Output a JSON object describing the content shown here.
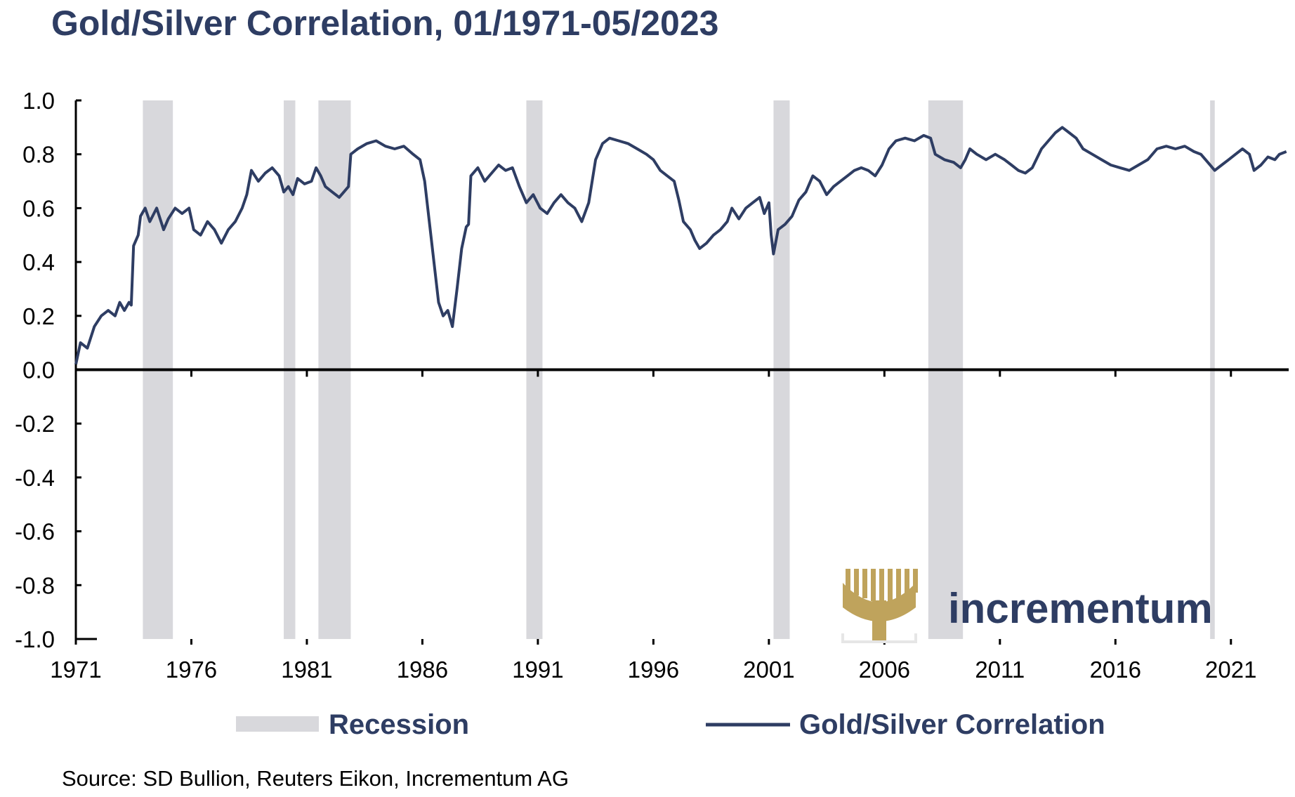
{
  "chart_data": {
    "type": "line",
    "title": "Gold/Silver Correlation, 01/1971-05/2023",
    "xlabel": "",
    "ylabel": "",
    "xlim": [
      1971.0,
      2023.5
    ],
    "ylim": [
      -1.0,
      1.0
    ],
    "y_ticks": [
      "1.0",
      "0.8",
      "0.6",
      "0.4",
      "0.2",
      "0.0",
      "-0.2",
      "-0.4",
      "-0.6",
      "-0.8",
      "-1.0"
    ],
    "x_ticks": [
      "1971",
      "1976",
      "1981",
      "1986",
      "1991",
      "1996",
      "2001",
      "2006",
      "2011",
      "2016",
      "2021"
    ],
    "grid": false,
    "legend_position": "bottom",
    "recession_periods": [
      [
        1973.9,
        1975.2
      ],
      [
        1980.0,
        1980.5
      ],
      [
        1981.5,
        1982.9
      ],
      [
        1990.5,
        1991.2
      ],
      [
        2001.2,
        2001.9
      ],
      [
        2007.9,
        2009.4
      ],
      [
        2020.1,
        2020.3
      ]
    ],
    "series": [
      {
        "name": "Gold/Silver Correlation",
        "color": "#2e3d63",
        "points": [
          [
            1971.0,
            0.02
          ],
          [
            1971.2,
            0.1
          ],
          [
            1971.5,
            0.08
          ],
          [
            1971.8,
            0.16
          ],
          [
            1972.1,
            0.2
          ],
          [
            1972.4,
            0.22
          ],
          [
            1972.7,
            0.2
          ],
          [
            1972.9,
            0.25
          ],
          [
            1973.1,
            0.22
          ],
          [
            1973.3,
            0.25
          ],
          [
            1973.4,
            0.24
          ],
          [
            1973.5,
            0.46
          ],
          [
            1973.7,
            0.5
          ],
          [
            1973.8,
            0.57
          ],
          [
            1974.0,
            0.6
          ],
          [
            1974.2,
            0.55
          ],
          [
            1974.5,
            0.6
          ],
          [
            1974.8,
            0.52
          ],
          [
            1975.0,
            0.56
          ],
          [
            1975.3,
            0.6
          ],
          [
            1975.6,
            0.58
          ],
          [
            1975.9,
            0.6
          ],
          [
            1976.1,
            0.52
          ],
          [
            1976.4,
            0.5
          ],
          [
            1976.7,
            0.55
          ],
          [
            1977.0,
            0.52
          ],
          [
            1977.3,
            0.47
          ],
          [
            1977.6,
            0.52
          ],
          [
            1977.9,
            0.55
          ],
          [
            1978.2,
            0.6
          ],
          [
            1978.4,
            0.65
          ],
          [
            1978.6,
            0.74
          ],
          [
            1978.9,
            0.7
          ],
          [
            1979.2,
            0.73
          ],
          [
            1979.5,
            0.75
          ],
          [
            1979.8,
            0.72
          ],
          [
            1980.0,
            0.66
          ],
          [
            1980.2,
            0.68
          ],
          [
            1980.4,
            0.65
          ],
          [
            1980.6,
            0.71
          ],
          [
            1980.9,
            0.69
          ],
          [
            1981.2,
            0.7
          ],
          [
            1981.4,
            0.75
          ],
          [
            1981.6,
            0.72
          ],
          [
            1981.8,
            0.68
          ],
          [
            1982.1,
            0.66
          ],
          [
            1982.4,
            0.64
          ],
          [
            1982.6,
            0.66
          ],
          [
            1982.8,
            0.68
          ],
          [
            1982.9,
            0.8
          ],
          [
            1983.2,
            0.82
          ],
          [
            1983.6,
            0.84
          ],
          [
            1984.0,
            0.85
          ],
          [
            1984.4,
            0.83
          ],
          [
            1984.8,
            0.82
          ],
          [
            1985.2,
            0.83
          ],
          [
            1985.6,
            0.8
          ],
          [
            1985.9,
            0.78
          ],
          [
            1986.1,
            0.7
          ],
          [
            1986.3,
            0.55
          ],
          [
            1986.5,
            0.4
          ],
          [
            1986.7,
            0.25
          ],
          [
            1986.9,
            0.2
          ],
          [
            1987.1,
            0.22
          ],
          [
            1987.3,
            0.16
          ],
          [
            1987.5,
            0.3
          ],
          [
            1987.7,
            0.45
          ],
          [
            1987.9,
            0.53
          ],
          [
            1988.0,
            0.54
          ],
          [
            1988.1,
            0.72
          ],
          [
            1988.4,
            0.75
          ],
          [
            1988.7,
            0.7
          ],
          [
            1989.0,
            0.73
          ],
          [
            1989.3,
            0.76
          ],
          [
            1989.6,
            0.74
          ],
          [
            1989.9,
            0.75
          ],
          [
            1990.2,
            0.68
          ],
          [
            1990.5,
            0.62
          ],
          [
            1990.8,
            0.65
          ],
          [
            1991.1,
            0.6
          ],
          [
            1991.4,
            0.58
          ],
          [
            1991.7,
            0.62
          ],
          [
            1992.0,
            0.65
          ],
          [
            1992.3,
            0.62
          ],
          [
            1992.6,
            0.6
          ],
          [
            1992.9,
            0.55
          ],
          [
            1993.2,
            0.62
          ],
          [
            1993.5,
            0.78
          ],
          [
            1993.8,
            0.84
          ],
          [
            1994.1,
            0.86
          ],
          [
            1994.5,
            0.85
          ],
          [
            1994.9,
            0.84
          ],
          [
            1995.3,
            0.82
          ],
          [
            1995.7,
            0.8
          ],
          [
            1996.0,
            0.78
          ],
          [
            1996.3,
            0.74
          ],
          [
            1996.6,
            0.72
          ],
          [
            1996.9,
            0.7
          ],
          [
            1997.1,
            0.63
          ],
          [
            1997.3,
            0.55
          ],
          [
            1997.6,
            0.52
          ],
          [
            1997.8,
            0.48
          ],
          [
            1998.0,
            0.45
          ],
          [
            1998.3,
            0.47
          ],
          [
            1998.6,
            0.5
          ],
          [
            1998.9,
            0.52
          ],
          [
            1999.2,
            0.55
          ],
          [
            1999.4,
            0.6
          ],
          [
            1999.7,
            0.56
          ],
          [
            2000.0,
            0.6
          ],
          [
            2000.3,
            0.62
          ],
          [
            2000.6,
            0.64
          ],
          [
            2000.8,
            0.58
          ],
          [
            2001.0,
            0.62
          ],
          [
            2001.1,
            0.5
          ],
          [
            2001.2,
            0.43
          ],
          [
            2001.4,
            0.52
          ],
          [
            2001.7,
            0.54
          ],
          [
            2002.0,
            0.57
          ],
          [
            2002.3,
            0.63
          ],
          [
            2002.6,
            0.66
          ],
          [
            2002.9,
            0.72
          ],
          [
            2003.2,
            0.7
          ],
          [
            2003.5,
            0.65
          ],
          [
            2003.8,
            0.68
          ],
          [
            2004.1,
            0.7
          ],
          [
            2004.4,
            0.72
          ],
          [
            2004.7,
            0.74
          ],
          [
            2005.0,
            0.75
          ],
          [
            2005.3,
            0.74
          ],
          [
            2005.6,
            0.72
          ],
          [
            2005.9,
            0.76
          ],
          [
            2006.2,
            0.82
          ],
          [
            2006.5,
            0.85
          ],
          [
            2006.9,
            0.86
          ],
          [
            2007.3,
            0.85
          ],
          [
            2007.7,
            0.87
          ],
          [
            2008.0,
            0.86
          ],
          [
            2008.2,
            0.8
          ],
          [
            2008.6,
            0.78
          ],
          [
            2009.0,
            0.77
          ],
          [
            2009.3,
            0.75
          ],
          [
            2009.5,
            0.78
          ],
          [
            2009.7,
            0.82
          ],
          [
            2010.0,
            0.8
          ],
          [
            2010.4,
            0.78
          ],
          [
            2010.8,
            0.8
          ],
          [
            2011.2,
            0.78
          ],
          [
            2011.5,
            0.76
          ],
          [
            2011.8,
            0.74
          ],
          [
            2012.1,
            0.73
          ],
          [
            2012.4,
            0.75
          ],
          [
            2012.8,
            0.82
          ],
          [
            2013.1,
            0.85
          ],
          [
            2013.4,
            0.88
          ],
          [
            2013.7,
            0.9
          ],
          [
            2014.0,
            0.88
          ],
          [
            2014.3,
            0.86
          ],
          [
            2014.6,
            0.82
          ],
          [
            2015.0,
            0.8
          ],
          [
            2015.4,
            0.78
          ],
          [
            2015.8,
            0.76
          ],
          [
            2016.2,
            0.75
          ],
          [
            2016.6,
            0.74
          ],
          [
            2017.0,
            0.76
          ],
          [
            2017.4,
            0.78
          ],
          [
            2017.8,
            0.82
          ],
          [
            2018.2,
            0.83
          ],
          [
            2018.6,
            0.82
          ],
          [
            2019.0,
            0.83
          ],
          [
            2019.4,
            0.81
          ],
          [
            2019.7,
            0.8
          ],
          [
            2020.0,
            0.77
          ],
          [
            2020.3,
            0.74
          ],
          [
            2020.6,
            0.76
          ],
          [
            2020.9,
            0.78
          ],
          [
            2021.2,
            0.8
          ],
          [
            2021.5,
            0.82
          ],
          [
            2021.8,
            0.8
          ],
          [
            2022.0,
            0.74
          ],
          [
            2022.3,
            0.76
          ],
          [
            2022.6,
            0.79
          ],
          [
            2022.9,
            0.78
          ],
          [
            2023.1,
            0.8
          ],
          [
            2023.4,
            0.81
          ]
        ]
      }
    ],
    "legend": [
      {
        "kind": "area",
        "label": "Recession",
        "color": "#d8d8dc"
      },
      {
        "kind": "line",
        "label": "Gold/Silver Correlation",
        "color": "#2e3d63"
      }
    ],
    "source": "Source: SD Bullion, Reuters Eikon, Incrementum AG"
  },
  "logo": {
    "text": "incrementum",
    "text_color": "#2e3d63",
    "icon_color": "#bfa35c"
  }
}
